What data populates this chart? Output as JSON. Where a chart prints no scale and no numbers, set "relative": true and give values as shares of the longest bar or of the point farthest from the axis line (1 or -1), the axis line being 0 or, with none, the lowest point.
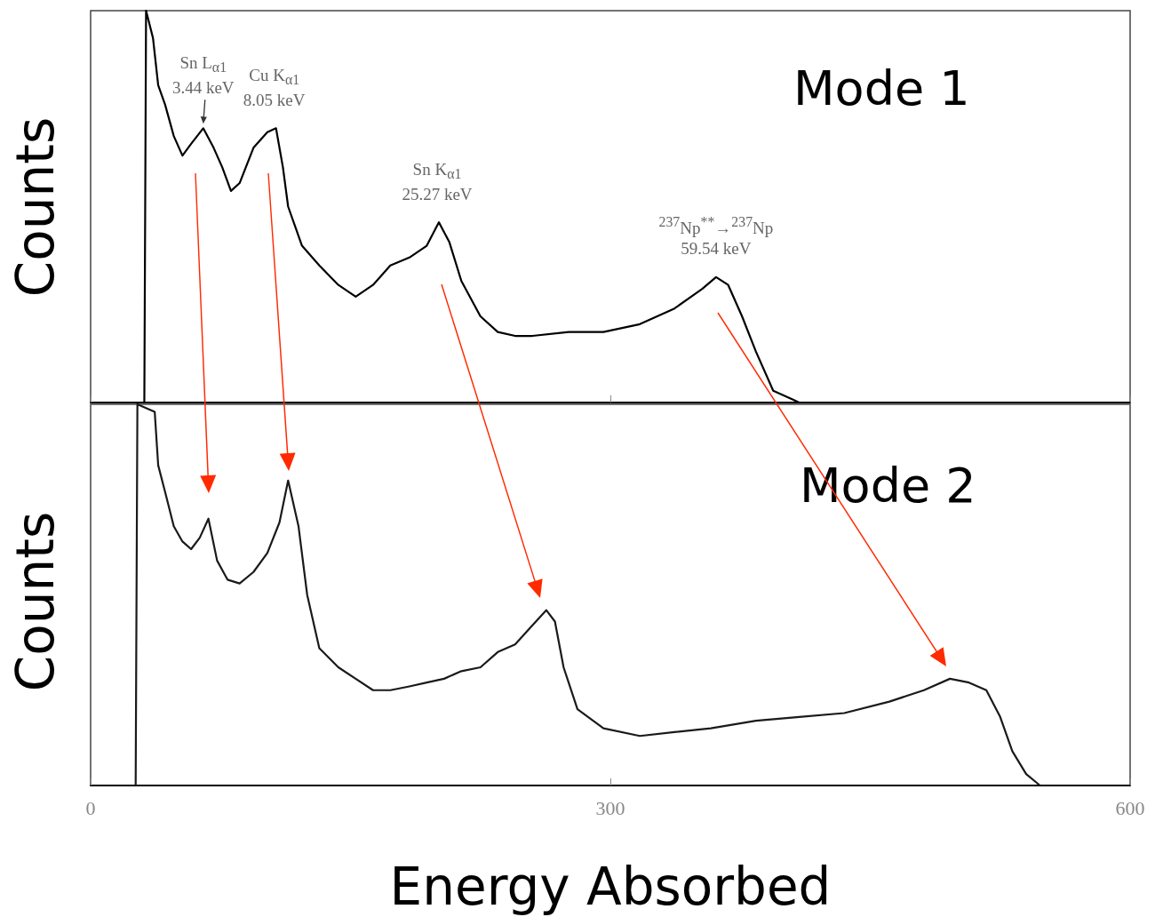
{
  "chart_data": [
    {
      "type": "line",
      "relative": true,
      "ylabel": "Counts",
      "xlim": [
        0,
        600
      ],
      "xticks": [
        0,
        300,
        600
      ],
      "tick_labels": false,
      "grid": false,
      "x": [
        31,
        32,
        36,
        39,
        43,
        48,
        53,
        58,
        65,
        71,
        76,
        81,
        86,
        94,
        102,
        107,
        111,
        114,
        122,
        132,
        143,
        153,
        163,
        173,
        184,
        194,
        201,
        207,
        214,
        225,
        235,
        245,
        255,
        276,
        296,
        317,
        337,
        353,
        361,
        368,
        376,
        384,
        394,
        404,
        409
      ],
      "series": [
        {
          "color": "#000000",
          "values": [
            0,
            1.0,
            0.93,
            0.81,
            0.76,
            0.68,
            0.63,
            0.66,
            0.7,
            0.65,
            0.6,
            0.54,
            0.56,
            0.65,
            0.69,
            0.7,
            0.6,
            0.5,
            0.4,
            0.35,
            0.3,
            0.27,
            0.3,
            0.35,
            0.37,
            0.4,
            0.46,
            0.41,
            0.31,
            0.22,
            0.18,
            0.17,
            0.17,
            0.18,
            0.18,
            0.2,
            0.24,
            0.29,
            0.32,
            0.3,
            0.22,
            0.13,
            0.03,
            0.01,
            0
          ]
        }
      ],
      "annotations": [
        {
          "text": "Sn L$_{α1}$\n3.44 keV",
          "x": 65,
          "y": 0.7
        },
        {
          "text": "Cu K$_{α1}$\n8.05 keV",
          "x": 106,
          "y": 0.7
        },
        {
          "text": "Sn K$_{α1}$\n25.27 keV",
          "x": 200,
          "y": 0.46
        },
        {
          "text": "$^{237}$Np$^{**}$→$^{237}$Np\n59.54 keV",
          "x": 361,
          "y": 0.32
        },
        "Mode 1"
      ]
    },
    {
      "type": "line",
      "relative": true,
      "ylabel": "Counts",
      "xlabel": "Energy Absorbed",
      "xlim": [
        0,
        600
      ],
      "xticks": [
        0,
        300,
        600
      ],
      "tick_labels": "x",
      "grid": false,
      "x": [
        26,
        27,
        37,
        39,
        43,
        48,
        53,
        58,
        63,
        68,
        73,
        79,
        86,
        94,
        102,
        109,
        114,
        120,
        125,
        132,
        143,
        153,
        163,
        173,
        184,
        194,
        204,
        214,
        225,
        235,
        245,
        255,
        263,
        268,
        273,
        281,
        296,
        317,
        337,
        358,
        384,
        409,
        435,
        461,
        481,
        496,
        507,
        517,
        525,
        532,
        540,
        548
      ],
      "series": [
        {
          "color": "#1a1a1a",
          "values": [
            0,
            1.0,
            0.98,
            0.84,
            0.77,
            0.68,
            0.64,
            0.62,
            0.65,
            0.7,
            0.59,
            0.54,
            0.53,
            0.56,
            0.61,
            0.69,
            0.8,
            0.68,
            0.5,
            0.36,
            0.31,
            0.28,
            0.25,
            0.25,
            0.26,
            0.27,
            0.28,
            0.3,
            0.31,
            0.35,
            0.37,
            0.42,
            0.46,
            0.43,
            0.31,
            0.2,
            0.15,
            0.13,
            0.14,
            0.15,
            0.17,
            0.18,
            0.19,
            0.22,
            0.25,
            0.28,
            0.27,
            0.25,
            0.18,
            0.09,
            0.03,
            0
          ]
        }
      ],
      "annotations": [
        "Mode 2"
      ]
    }
  ]
}
